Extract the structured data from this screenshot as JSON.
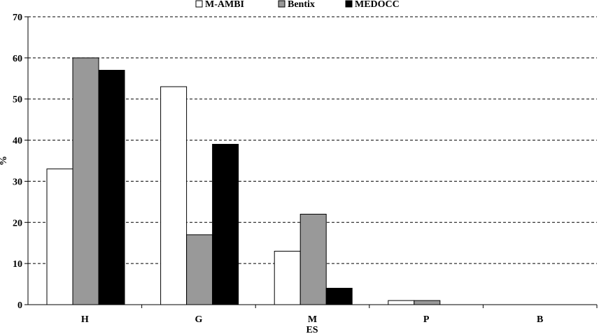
{
  "chart_data": {
    "type": "bar",
    "categories": [
      "H",
      "G",
      "M",
      "P",
      "B"
    ],
    "series": [
      {
        "name": "M-AMBI",
        "color": "#ffffff",
        "values": [
          33,
          53,
          13,
          1,
          0
        ]
      },
      {
        "name": "Bentix",
        "color": "#999999",
        "values": [
          60,
          17,
          22,
          1,
          0
        ]
      },
      {
        "name": "MEDOCC",
        "color": "#000000",
        "values": [
          57,
          39,
          4,
          0,
          0
        ]
      }
    ],
    "xlabel": "ES",
    "ylabel": "%",
    "ylim": [
      0,
      70
    ],
    "yticks": [
      0,
      10,
      20,
      30,
      40,
      50,
      60,
      70
    ],
    "grid": "horizontal dashed",
    "legend_position": "top"
  }
}
